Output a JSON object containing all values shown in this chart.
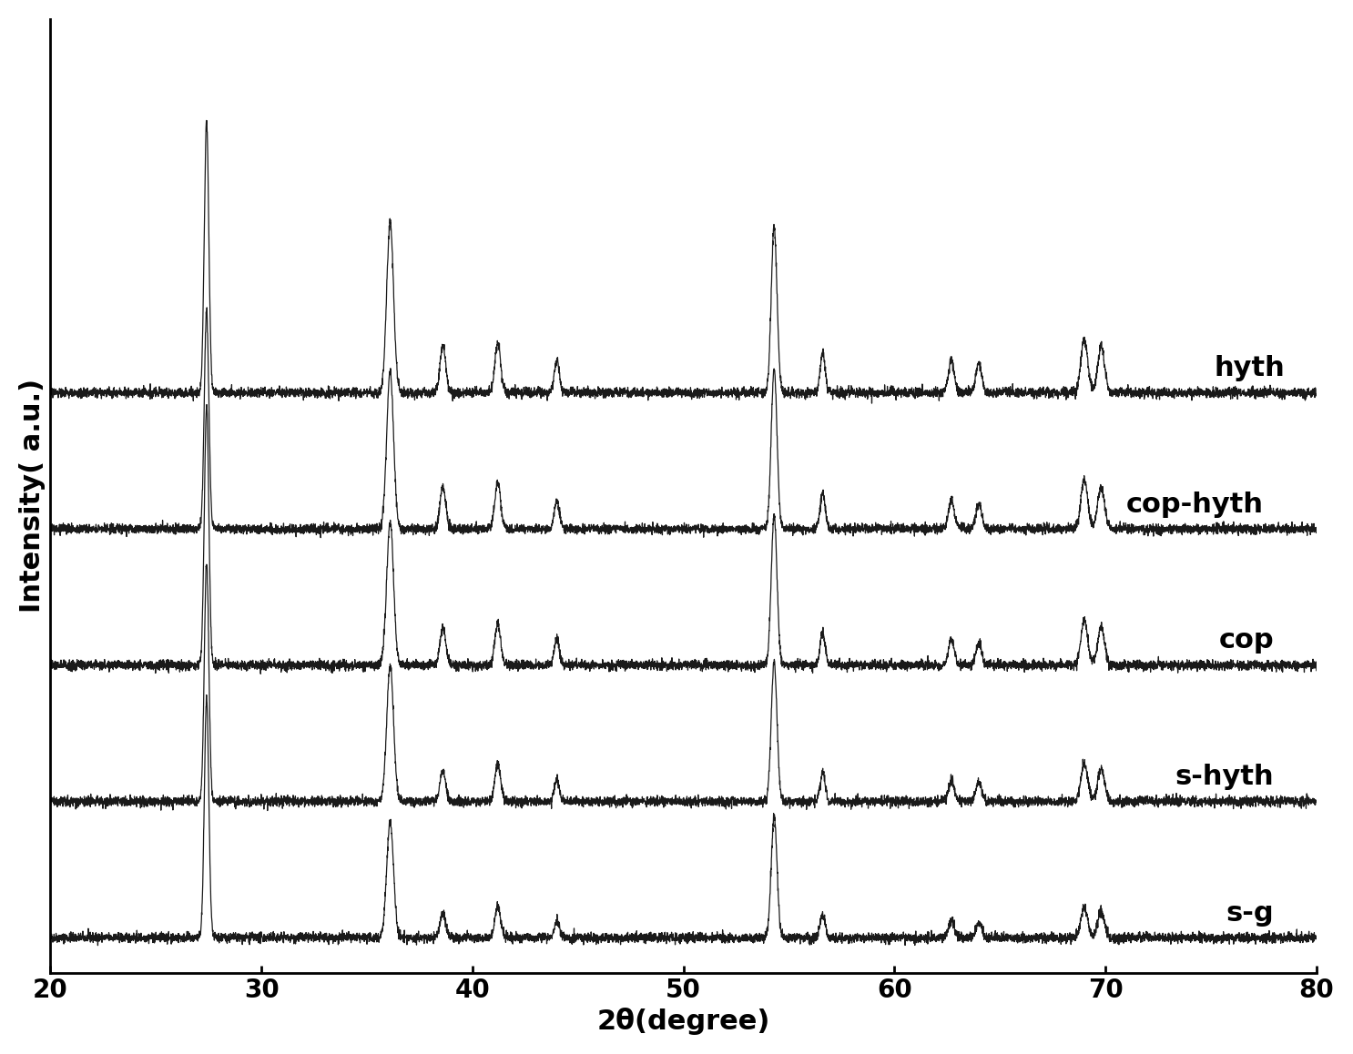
{
  "x_min": 20,
  "x_max": 80,
  "x_ticks": [
    20,
    30,
    40,
    50,
    60,
    70,
    80
  ],
  "xlabel": "2θ(degree)",
  "ylabel": "Intensity( a.u.)",
  "background_color": "#ffffff",
  "line_color": "#1a1a1a",
  "series_labels": [
    "s-g",
    "s-hyth",
    "cop",
    "cop-hyth",
    "hyth"
  ],
  "series_offsets": [
    0,
    2.0,
    4.0,
    6.0,
    8.0
  ],
  "peak_positions": [
    27.4,
    36.1,
    38.6,
    41.2,
    44.0,
    54.3,
    56.6,
    62.7,
    64.0,
    69.0,
    69.8
  ],
  "peak_widths": [
    0.25,
    0.38,
    0.32,
    0.32,
    0.28,
    0.32,
    0.28,
    0.32,
    0.32,
    0.38,
    0.38
  ],
  "peak_heights_sg": [
    3.5,
    1.7,
    0.35,
    0.45,
    0.25,
    1.8,
    0.35,
    0.25,
    0.22,
    0.45,
    0.38
  ],
  "peak_heights_shyth": [
    3.5,
    2.0,
    0.45,
    0.55,
    0.32,
    2.05,
    0.42,
    0.32,
    0.28,
    0.55,
    0.48
  ],
  "peak_heights_cop": [
    3.8,
    2.1,
    0.55,
    0.6,
    0.38,
    2.2,
    0.48,
    0.38,
    0.33,
    0.65,
    0.55
  ],
  "peak_heights_cophyth": [
    3.2,
    2.3,
    0.62,
    0.67,
    0.43,
    2.35,
    0.52,
    0.43,
    0.38,
    0.72,
    0.62
  ],
  "peak_heights_hyth": [
    4.0,
    2.5,
    0.68,
    0.72,
    0.48,
    2.45,
    0.58,
    0.48,
    0.43,
    0.78,
    0.68
  ],
  "noise_level": 0.035,
  "label_fontsize": 22,
  "tick_fontsize": 20,
  "series_label_fontsize": 22,
  "linewidth": 0.9
}
